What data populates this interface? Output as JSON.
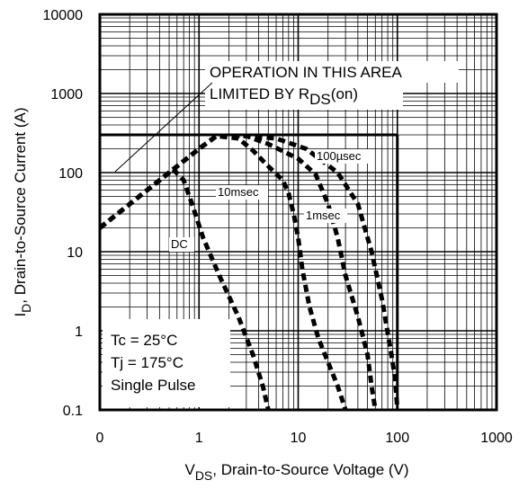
{
  "chart_data": {
    "type": "line",
    "x_scale": "log",
    "y_scale": "log",
    "xlim": [
      0.1,
      1000
    ],
    "ylim": [
      0.1,
      10000
    ],
    "grid": true,
    "x_ticks": [
      "0",
      "1",
      "10",
      "100",
      "1000"
    ],
    "y_ticks": [
      "10000",
      "1000",
      "100",
      "10",
      "1",
      "0.1"
    ],
    "xlabel": {
      "main": "V",
      "sub": "DS",
      "rest": ", Drain-to-Source Voltage (V)"
    },
    "ylabel": {
      "main": "I",
      "sub": "D",
      "rest": ",  Drain-to-Source Current (A)"
    },
    "annotations": {
      "operation_line1": "OPERATION IN THIS AREA",
      "operation_line2_main": "LIMITED BY R",
      "operation_line2_sub": "DS",
      "operation_line2_rest": "(on)",
      "conditions": [
        "Tc = 25°C",
        "Tj = 175°C",
        "Single Pulse"
      ]
    },
    "limits": {
      "current_limit_A": 300,
      "voltage_limit_V": 100
    },
    "series": [
      {
        "name": "DC",
        "points": [
          [
            0.1,
            20
          ],
          [
            0.55,
            110
          ],
          [
            0.7,
            80
          ],
          [
            0.85,
            40
          ],
          [
            1.1,
            15
          ],
          [
            1.6,
            5
          ],
          [
            2.5,
            1.5
          ],
          [
            3.5,
            0.5
          ],
          [
            4.4,
            0.2
          ],
          [
            5.0,
            0.1
          ]
        ]
      },
      {
        "name": "10msec",
        "points": [
          [
            0.1,
            20
          ],
          [
            1.0,
            200
          ],
          [
            1.5,
            290
          ],
          [
            2.5,
            270
          ],
          [
            3.5,
            190
          ],
          [
            5.0,
            120
          ],
          [
            7.0,
            80
          ],
          [
            8.0,
            55
          ],
          [
            9.0,
            30
          ],
          [
            10.0,
            15
          ],
          [
            11.0,
            6
          ],
          [
            13.0,
            2
          ],
          [
            16.0,
            0.8
          ],
          [
            20.0,
            0.4
          ],
          [
            25.0,
            0.2
          ],
          [
            30.0,
            0.1
          ]
        ]
      },
      {
        "name": "1msec",
        "points": [
          [
            0.1,
            20
          ],
          [
            1.0,
            200
          ],
          [
            1.5,
            290
          ],
          [
            3.0,
            290
          ],
          [
            5.0,
            230
          ],
          [
            10.0,
            150
          ],
          [
            15.0,
            95
          ],
          [
            20.0,
            40
          ],
          [
            25.0,
            15
          ],
          [
            30.0,
            5
          ],
          [
            40.0,
            1.5
          ],
          [
            50.0,
            0.5
          ],
          [
            55.0,
            0.2
          ],
          [
            60.0,
            0.1
          ]
        ]
      },
      {
        "name": "100µsec",
        "points": [
          [
            0.1,
            20
          ],
          [
            1.0,
            200
          ],
          [
            1.5,
            290
          ],
          [
            3.0,
            290
          ],
          [
            6.0,
            270
          ],
          [
            12.0,
            200
          ],
          [
            25.0,
            100
          ],
          [
            40.0,
            40
          ],
          [
            55.0,
            10
          ],
          [
            70.0,
            2.5
          ],
          [
            85.0,
            0.6
          ],
          [
            95.0,
            0.25
          ],
          [
            100.0,
            0.1
          ]
        ]
      }
    ],
    "series_labels": {
      "DC": "DC",
      "10msec": "10msec",
      "1msec": "1msec",
      "100µsec": "100µsec"
    }
  }
}
